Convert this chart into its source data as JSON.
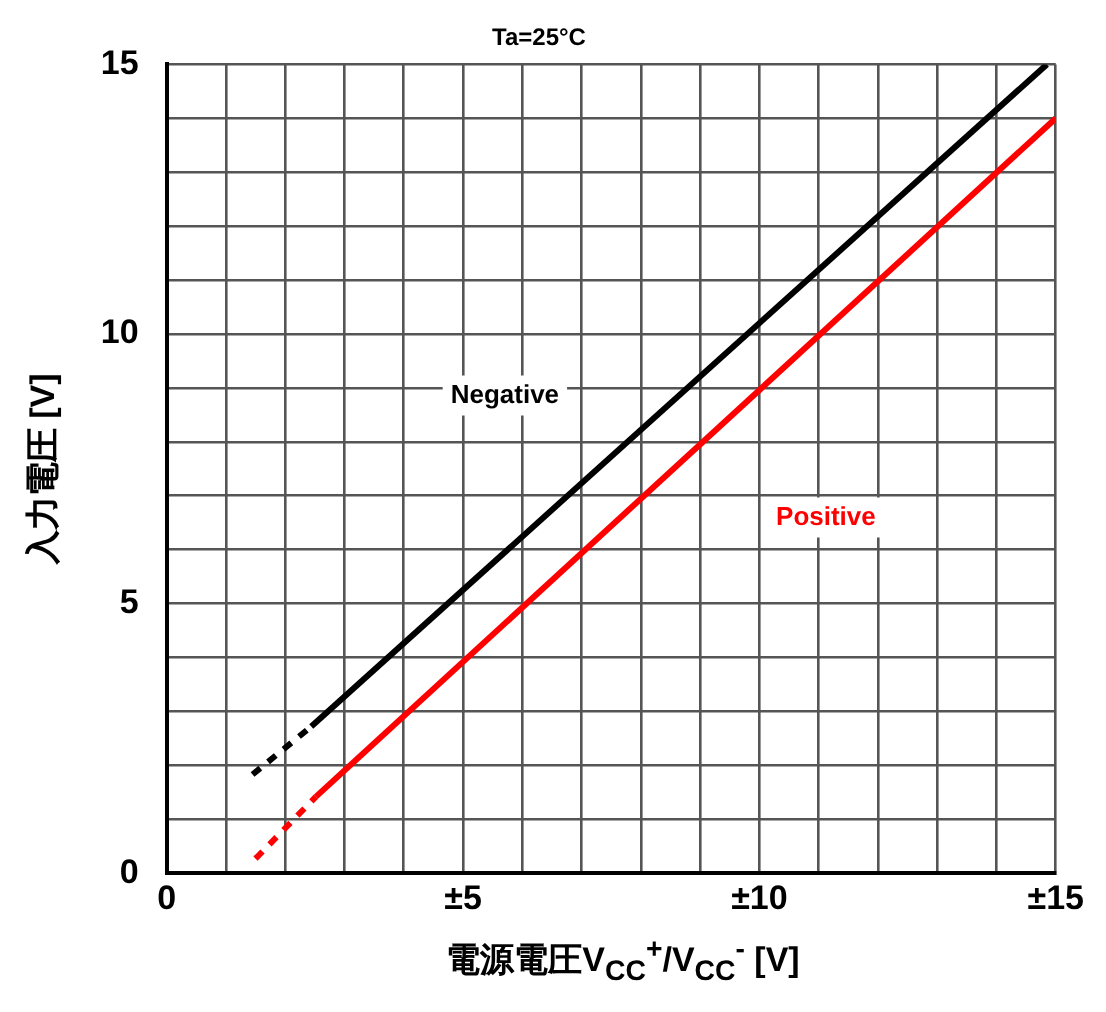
{
  "chart_data": {
    "type": "line",
    "title": "Ta=25°C",
    "xlabel": "電源電圧V$_{CC}$$^{+}$/V$_{CC}$$^{-}$ [V]",
    "ylabel": "入力電圧 [V]",
    "series": [
      {
        "color": "#000000",
        "line_style": "dashed",
        "x": [
          1.45,
          2.44
        ],
        "values": [
          1.83,
          2.72
        ]
      },
      {
        "name": "Negative",
        "color": "#000000",
        "line_style": "solid",
        "x": [
          2.44,
          14.85
        ],
        "values": [
          2.72,
          15
        ]
      },
      {
        "color": "#ff0000",
        "line_style": "dashed",
        "x": [
          1.5,
          2.52
        ],
        "values": [
          0.27,
          1.42
        ]
      },
      {
        "name": "Positive",
        "color": "#ff0000",
        "line_style": "solid",
        "x": [
          2.52,
          15
        ],
        "values": [
          1.42,
          14
        ]
      }
    ],
    "xlim": [
      0,
      15
    ],
    "ylim": [
      0,
      15
    ],
    "xticks": [
      0,
      {
        "value": 1,
        "label": null
      },
      {
        "value": 2,
        "label": null
      },
      {
        "value": 3,
        "label": null
      },
      {
        "value": 4,
        "label": null
      },
      {
        "value": 5,
        "label": "±5"
      },
      {
        "value": 6,
        "label": null
      },
      {
        "value": 7,
        "label": null
      },
      {
        "value": 8,
        "label": null
      },
      {
        "value": 9,
        "label": null
      },
      {
        "value": 10,
        "label": "±10"
      },
      {
        "value": 11,
        "label": null
      },
      {
        "value": 12,
        "label": null
      },
      {
        "value": 13,
        "label": null
      },
      {
        "value": 14,
        "label": null
      },
      {
        "value": 15,
        "label": "±15"
      }
    ],
    "yticks": [
      0,
      {
        "value": 1,
        "label": null
      },
      {
        "value": 2,
        "label": null
      },
      {
        "value": 3,
        "label": null
      },
      {
        "value": 4,
        "label": null
      },
      5,
      {
        "value": 6,
        "label": null
      },
      {
        "value": 7,
        "label": null
      },
      {
        "value": 8,
        "label": null
      },
      {
        "value": 9,
        "label": null
      },
      10,
      {
        "value": 11,
        "label": null
      },
      {
        "value": 12,
        "label": null
      },
      {
        "value": 13,
        "label": null
      },
      {
        "value": 14,
        "label": null
      },
      15
    ],
    "grid": true,
    "legend": false,
    "marker": "none"
  }
}
